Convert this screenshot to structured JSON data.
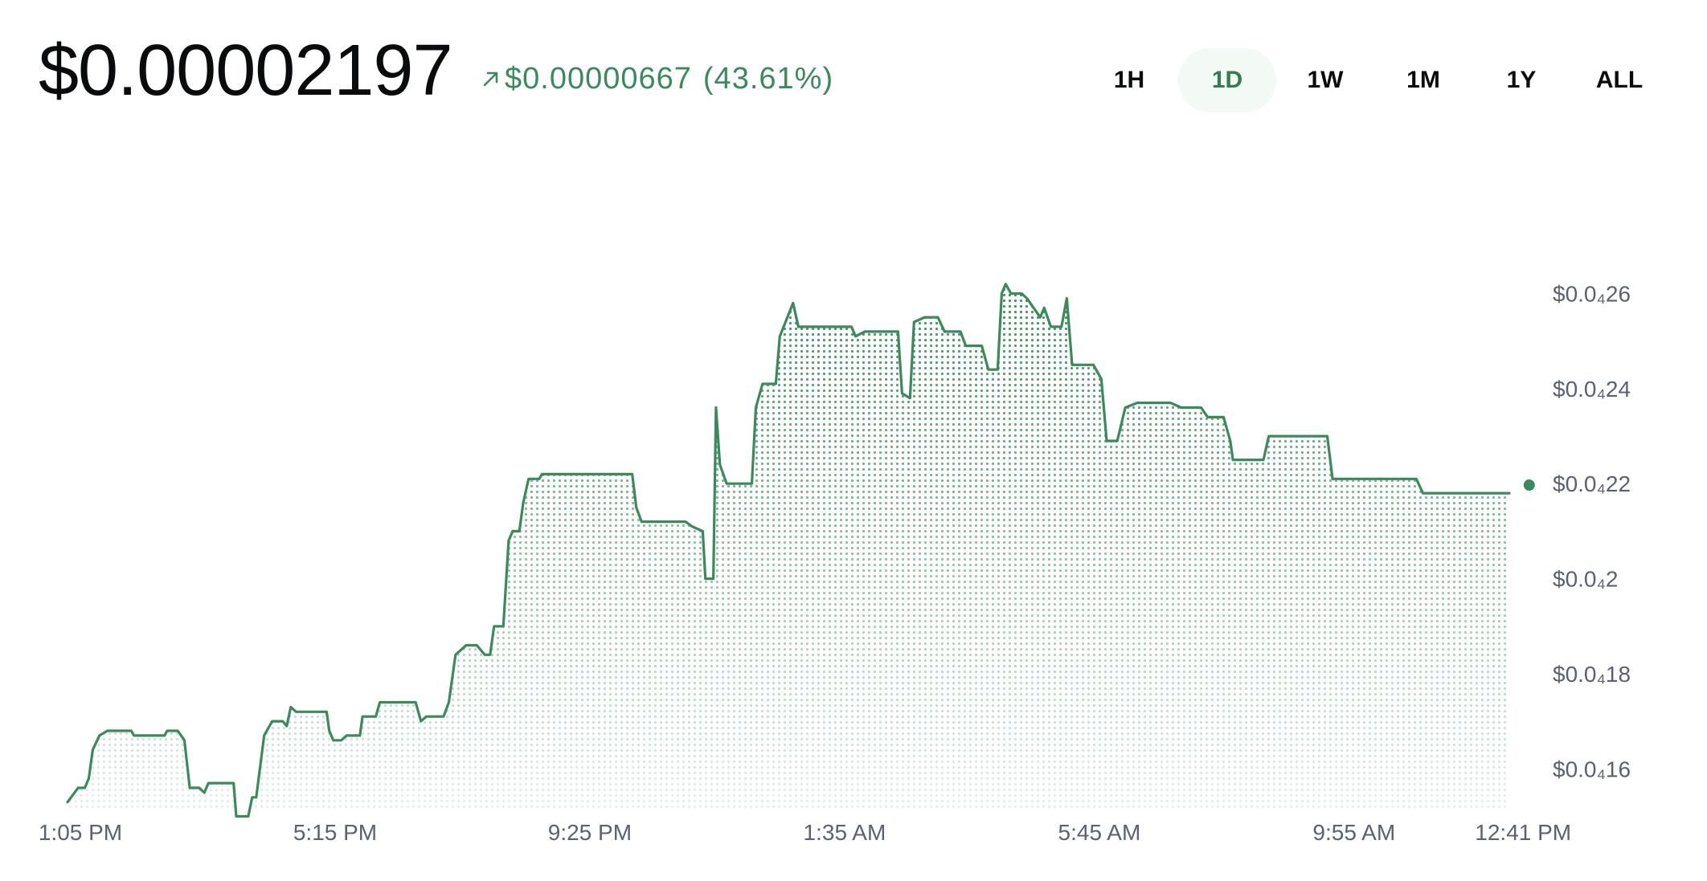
{
  "header": {
    "price": "$0.00002197",
    "change_amount": "$0.00000667",
    "change_percent": "(43.61%)",
    "change_direction": "up",
    "change_color": "#3a8a5c"
  },
  "ranges": [
    {
      "label": "1H",
      "active": false
    },
    {
      "label": "1D",
      "active": true
    },
    {
      "label": "1W",
      "active": false
    },
    {
      "label": "1M",
      "active": false
    },
    {
      "label": "1Y",
      "active": false
    },
    {
      "label": "ALL",
      "active": false
    }
  ],
  "chart_data": {
    "type": "line",
    "style": "step line with dotted area fill",
    "line_color": "#3a8a5c",
    "x_tick_labels": [
      "1:05 PM",
      "5:15 PM",
      "9:25 PM",
      "1:35 AM",
      "5:45 AM",
      "9:55 AM",
      "12:41 PM"
    ],
    "y_tick_labels": [
      "$0.0₄26",
      "$0.0₄24",
      "$0.0₄22",
      "$0.0₄2",
      "$0.0₄18",
      "$0.0₄16"
    ],
    "y_tick_values": [
      2.6e-05,
      2.4e-05,
      2.2e-05,
      2e-05,
      1.8e-05,
      1.6e-05
    ],
    "ylim": [
      1.511e-05,
      2.66e-05
    ],
    "x_range": [
      "1:05 PM",
      "12:41 PM"
    ],
    "grid": false,
    "last_value": 2.197e-05,
    "points": [
      [
        0.0,
        1.53e-05
      ],
      [
        0.008,
        1.56e-05
      ],
      [
        0.013,
        1.56e-05
      ],
      [
        0.016,
        1.58e-05
      ],
      [
        0.019,
        1.64e-05
      ],
      [
        0.024,
        1.67e-05
      ],
      [
        0.03,
        1.68e-05
      ],
      [
        0.048,
        1.68e-05
      ],
      [
        0.05,
        1.67e-05
      ],
      [
        0.073,
        1.67e-05
      ],
      [
        0.075,
        1.68e-05
      ],
      [
        0.083,
        1.68e-05
      ],
      [
        0.088,
        1.66e-05
      ],
      [
        0.092,
        1.56e-05
      ],
      [
        0.099,
        1.56e-05
      ],
      [
        0.103,
        1.55e-05
      ],
      [
        0.106,
        1.57e-05
      ],
      [
        0.117,
        1.57e-05
      ],
      [
        0.125,
        1.57e-05
      ],
      [
        0.127,
        1.5e-05
      ],
      [
        0.136,
        1.5e-05
      ],
      [
        0.139,
        1.54e-05
      ],
      [
        0.142,
        1.54e-05
      ],
      [
        0.148,
        1.67e-05
      ],
      [
        0.154,
        1.7e-05
      ],
      [
        0.162,
        1.7e-05
      ],
      [
        0.165,
        1.69e-05
      ],
      [
        0.168,
        1.73e-05
      ],
      [
        0.172,
        1.72e-05
      ],
      [
        0.185,
        1.72e-05
      ],
      [
        0.195,
        1.72e-05
      ],
      [
        0.197,
        1.68e-05
      ],
      [
        0.2,
        1.66e-05
      ],
      [
        0.206,
        1.66e-05
      ],
      [
        0.21,
        1.67e-05
      ],
      [
        0.22,
        1.67e-05
      ],
      [
        0.222,
        1.71e-05
      ],
      [
        0.232,
        1.71e-05
      ],
      [
        0.235,
        1.74e-05
      ],
      [
        0.255,
        1.74e-05
      ],
      [
        0.262,
        1.74e-05
      ],
      [
        0.266,
        1.7e-05
      ],
      [
        0.27,
        1.71e-05
      ],
      [
        0.283,
        1.71e-05
      ],
      [
        0.287,
        1.74e-05
      ],
      [
        0.292,
        1.84e-05
      ],
      [
        0.3,
        1.86e-05
      ],
      [
        0.308,
        1.86e-05
      ],
      [
        0.314,
        1.84e-05
      ],
      [
        0.318,
        1.84e-05
      ],
      [
        0.321,
        1.9e-05
      ],
      [
        0.328,
        1.9e-05
      ],
      [
        0.332,
        2.08e-05
      ],
      [
        0.335,
        2.1e-05
      ],
      [
        0.34,
        2.1e-05
      ],
      [
        0.343,
        2.16e-05
      ],
      [
        0.347,
        2.21e-05
      ],
      [
        0.355,
        2.21e-05
      ],
      [
        0.357,
        2.22e-05
      ],
      [
        0.375,
        2.22e-05
      ],
      [
        0.378,
        2.22e-05
      ],
      [
        0.4,
        2.22e-05
      ],
      [
        0.425,
        2.22e-05
      ],
      [
        0.428,
        2.15e-05
      ],
      [
        0.432,
        2.12e-05
      ],
      [
        0.44,
        2.12e-05
      ],
      [
        0.465,
        2.12e-05
      ],
      [
        0.47,
        2.11e-05
      ],
      [
        0.478,
        2.1e-05
      ],
      [
        0.48,
        2e-05
      ],
      [
        0.486,
        2e-05
      ],
      [
        0.488,
        2.36e-05
      ],
      [
        0.491,
        2.24e-05
      ],
      [
        0.496,
        2.2e-05
      ],
      [
        0.515,
        2.2e-05
      ],
      [
        0.518,
        2.36e-05
      ],
      [
        0.523,
        2.41e-05
      ],
      [
        0.533,
        2.41e-05
      ],
      [
        0.536,
        2.51e-05
      ],
      [
        0.546,
        2.58e-05
      ],
      [
        0.55,
        2.53e-05
      ],
      [
        0.565,
        2.53e-05
      ],
      [
        0.59,
        2.53e-05
      ],
      [
        0.593,
        2.51e-05
      ],
      [
        0.6,
        2.52e-05
      ],
      [
        0.625,
        2.52e-05
      ],
      [
        0.628,
        2.39e-05
      ],
      [
        0.634,
        2.38e-05
      ],
      [
        0.637,
        2.54e-05
      ],
      [
        0.645,
        2.55e-05
      ],
      [
        0.655,
        2.55e-05
      ],
      [
        0.66,
        2.52e-05
      ],
      [
        0.672,
        2.52e-05
      ],
      [
        0.676,
        2.49e-05
      ],
      [
        0.688,
        2.49e-05
      ],
      [
        0.693,
        2.44e-05
      ],
      [
        0.7,
        2.44e-05
      ],
      [
        0.703,
        2.6e-05
      ],
      [
        0.706,
        2.62e-05
      ],
      [
        0.71,
        2.6e-05
      ],
      [
        0.718,
        2.6e-05
      ],
      [
        0.722,
        2.59e-05
      ],
      [
        0.727,
        2.57e-05
      ],
      [
        0.732,
        2.55e-05
      ],
      [
        0.735,
        2.57e-05
      ],
      [
        0.74,
        2.53e-05
      ],
      [
        0.748,
        2.53e-05
      ],
      [
        0.752,
        2.59e-05
      ],
      [
        0.756,
        2.45e-05
      ],
      [
        0.772,
        2.45e-05
      ],
      [
        0.778,
        2.42e-05
      ],
      [
        0.782,
        2.29e-05
      ],
      [
        0.79,
        2.29e-05
      ],
      [
        0.796,
        2.36e-05
      ],
      [
        0.805,
        2.37e-05
      ],
      [
        0.83,
        2.37e-05
      ],
      [
        0.838,
        2.36e-05
      ],
      [
        0.853,
        2.36e-05
      ],
      [
        0.858,
        2.34e-05
      ],
      [
        0.87,
        2.34e-05
      ],
      [
        0.875,
        2.29e-05
      ],
      [
        0.877,
        2.25e-05
      ],
      [
        0.9,
        2.25e-05
      ],
      [
        0.904,
        2.3e-05
      ],
      [
        0.948,
        2.3e-05
      ],
      [
        0.952,
        2.21e-05
      ],
      [
        0.975,
        2.21e-05
      ],
      [
        1.0,
        2.21e-05
      ],
      [
        1.015,
        2.21e-05
      ],
      [
        1.02,
        2.18e-05
      ],
      [
        1.08,
        2.18e-05
      ],
      [
        1.085,
        2.18e-05
      ]
    ]
  }
}
